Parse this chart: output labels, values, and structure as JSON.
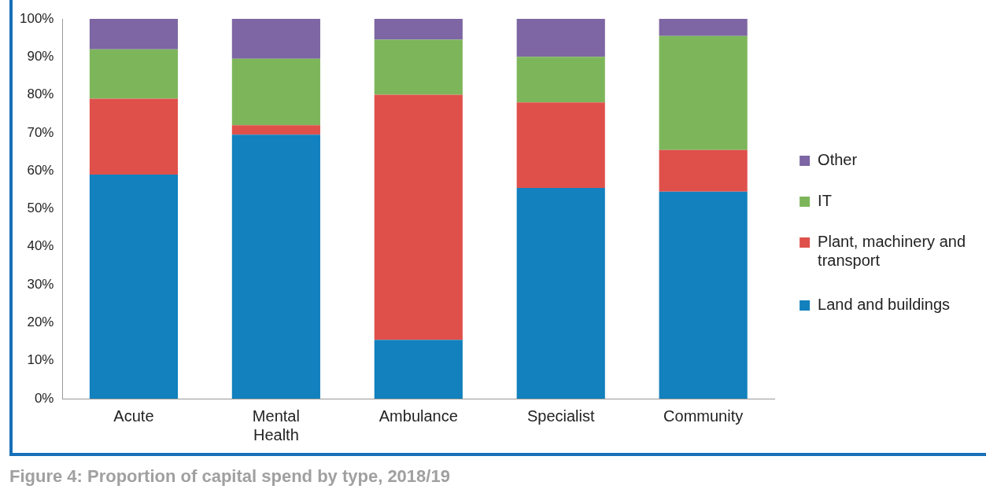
{
  "chart_data": {
    "type": "bar",
    "stacked": true,
    "categories": [
      "Acute",
      [
        "Mental",
        "Health"
      ],
      "Ambulance",
      "Specialist",
      "Community"
    ],
    "series": [
      {
        "name": "Land and buildings",
        "color": "#1281bd",
        "values": [
          59,
          69.5,
          15.5,
          55.5,
          54.5
        ]
      },
      {
        "name": "Plant, machinery and transport",
        "color": "#e0504b",
        "values": [
          20,
          2.5,
          64.5,
          22.5,
          11
        ]
      },
      {
        "name": "IT",
        "color": "#7db65a",
        "values": [
          13,
          17.5,
          14.5,
          12,
          30
        ]
      },
      {
        "name": "Other",
        "color": "#7d66a3",
        "values": [
          8,
          10.5,
          5.5,
          10,
          4.5
        ]
      }
    ],
    "ylim": [
      0,
      100
    ],
    "yticks": [
      {
        "value": 0,
        "label": "0%"
      },
      {
        "value": 10,
        "label": "10%"
      },
      {
        "value": 20,
        "label": "20%"
      },
      {
        "value": 30,
        "label": "30%"
      },
      {
        "value": 40,
        "label": "40%"
      },
      {
        "value": 50,
        "label": "50%"
      },
      {
        "value": 60,
        "label": "60%"
      },
      {
        "value": 70,
        "label": "70%"
      },
      {
        "value": 80,
        "label": "80%"
      },
      {
        "value": 90,
        "label": "90%"
      },
      {
        "value": 100,
        "label": "100%"
      }
    ],
    "grid": false,
    "legend": "right",
    "annotations": [
      "Figure 4: Proportion of capital spend by type, 2018/19"
    ]
  }
}
